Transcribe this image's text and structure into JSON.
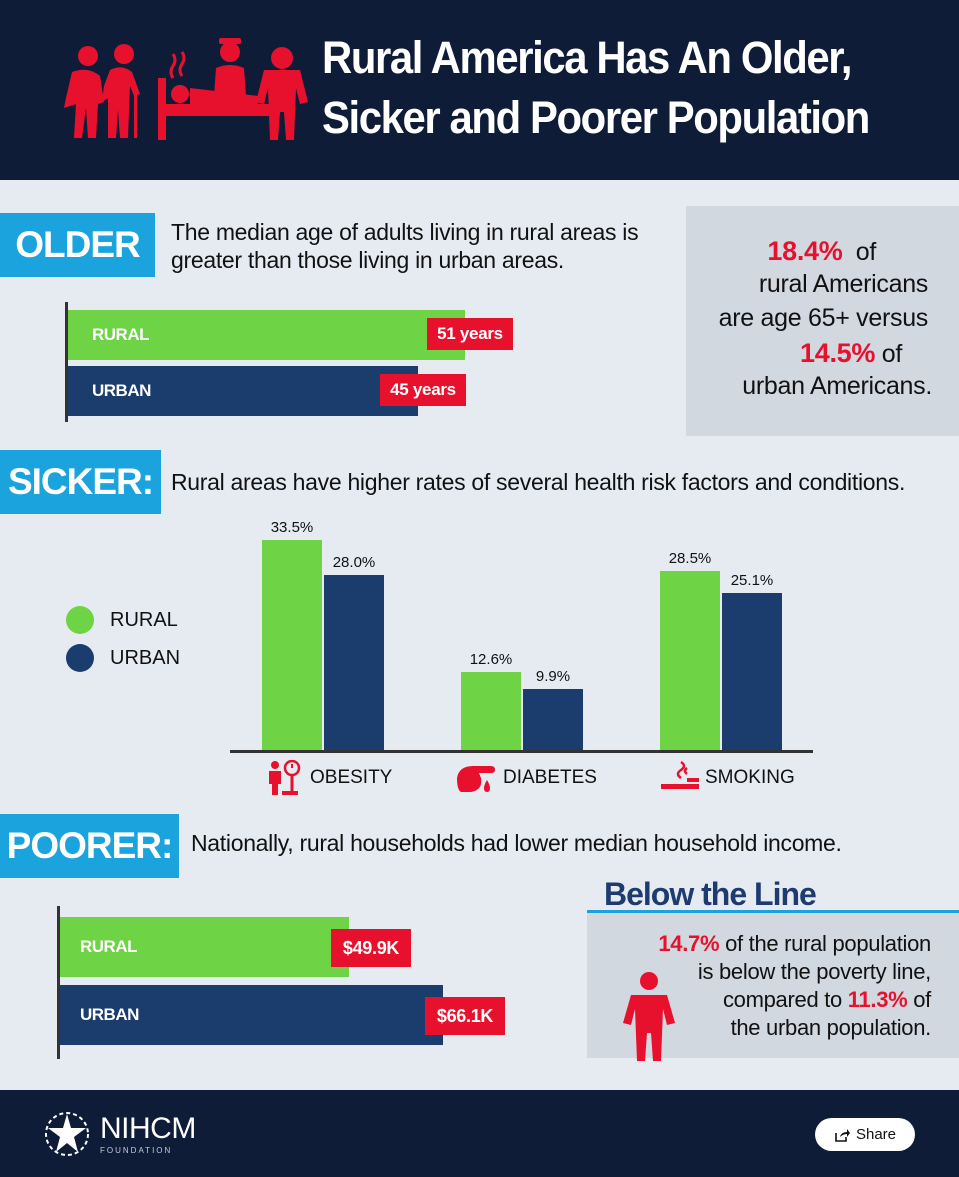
{
  "header": {
    "title_line1": "Rural America Has An Older,",
    "title_line2": "Sicker and Poorer Population",
    "icons": [
      "elderly-couple-icon",
      "hospital-bed-patient-icon",
      "person-hands-on-hips-icon"
    ]
  },
  "older": {
    "label": "OLDER",
    "text_line1": "The median age of adults living in rural areas is",
    "text_line2": "greater than those living in urban areas.",
    "bars": [
      {
        "name": "RURAL",
        "value": 51,
        "value_label": "51 years"
      },
      {
        "name": "URBAN",
        "value": 45,
        "value_label": "45 years"
      }
    ],
    "stat": {
      "pct_rural": "18.4%",
      "of1": "of",
      "line2": "rural Americans",
      "line3": "are age 65+ versus",
      "pct_urban": "14.5%",
      "of2": "of",
      "line5": "urban Americans."
    }
  },
  "sicker": {
    "label": "SICKER:",
    "text": "Rural areas have higher rates of several health risk factors and conditions.",
    "legend": [
      {
        "name": "RURAL",
        "color": "#6ed345"
      },
      {
        "name": "URBAN",
        "color": "#1b3d6e"
      }
    ],
    "categories": [
      {
        "name": "OBESITY",
        "icon": "weight-scale-person-icon"
      },
      {
        "name": "DIABETES",
        "icon": "blood-drop-hand-icon"
      },
      {
        "name": "SMOKING",
        "icon": "cigarette-icon"
      }
    ]
  },
  "poorer": {
    "label": "POORER:",
    "text": "Nationally, rural households had lower median household income.",
    "bars": [
      {
        "name": "RURAL",
        "value": 49.9,
        "value_label": "$49.9K"
      },
      {
        "name": "URBAN",
        "value": 66.1,
        "value_label": "$66.1K"
      }
    ]
  },
  "below_line": {
    "title": "Below the Line",
    "pct_rural": "14.7%",
    "line1_rest": "of the rural population",
    "line2": "is below the poverty line,",
    "line3_pre": "compared to",
    "pct_urban": "11.3%",
    "line3_post": "of",
    "line4": "the urban population."
  },
  "footer": {
    "logo": "NIHCM",
    "logo_sub": "FOUNDATION",
    "share_label": "Share"
  },
  "colors": {
    "navy": "#0f1c38",
    "accent_blue": "#1aa3dc",
    "rural_green": "#6ed345",
    "urban_navy": "#1b3d6e",
    "highlight_red": "#e8112d"
  },
  "chart_data": [
    {
      "type": "bar",
      "orientation": "horizontal",
      "categories": [
        "RURAL",
        "URBAN"
      ],
      "values": [
        51,
        45
      ],
      "unit": "years",
      "data_labels": [
        "51 years",
        "45 years"
      ]
    },
    {
      "type": "bar",
      "orientation": "vertical",
      "categories": [
        "OBESITY",
        "DIABETES",
        "SMOKING"
      ],
      "series": [
        {
          "name": "RURAL",
          "values": [
            33.5,
            12.6,
            28.5
          ],
          "labels": [
            "33.5%",
            "12.6%",
            "28.5%"
          ],
          "color": "#6ed345"
        },
        {
          "name": "URBAN",
          "values": [
            28.0,
            9.9,
            25.1
          ],
          "labels": [
            "28.0%",
            "9.9%",
            "25.1%"
          ],
          "color": "#1b3d6e"
        }
      ],
      "legend": "left",
      "grid": false
    },
    {
      "type": "bar",
      "orientation": "horizontal",
      "categories": [
        "RURAL",
        "URBAN"
      ],
      "values": [
        49.9,
        66.1
      ],
      "unit": "$K",
      "data_labels": [
        "$49.9K",
        "$66.1K"
      ]
    }
  ]
}
